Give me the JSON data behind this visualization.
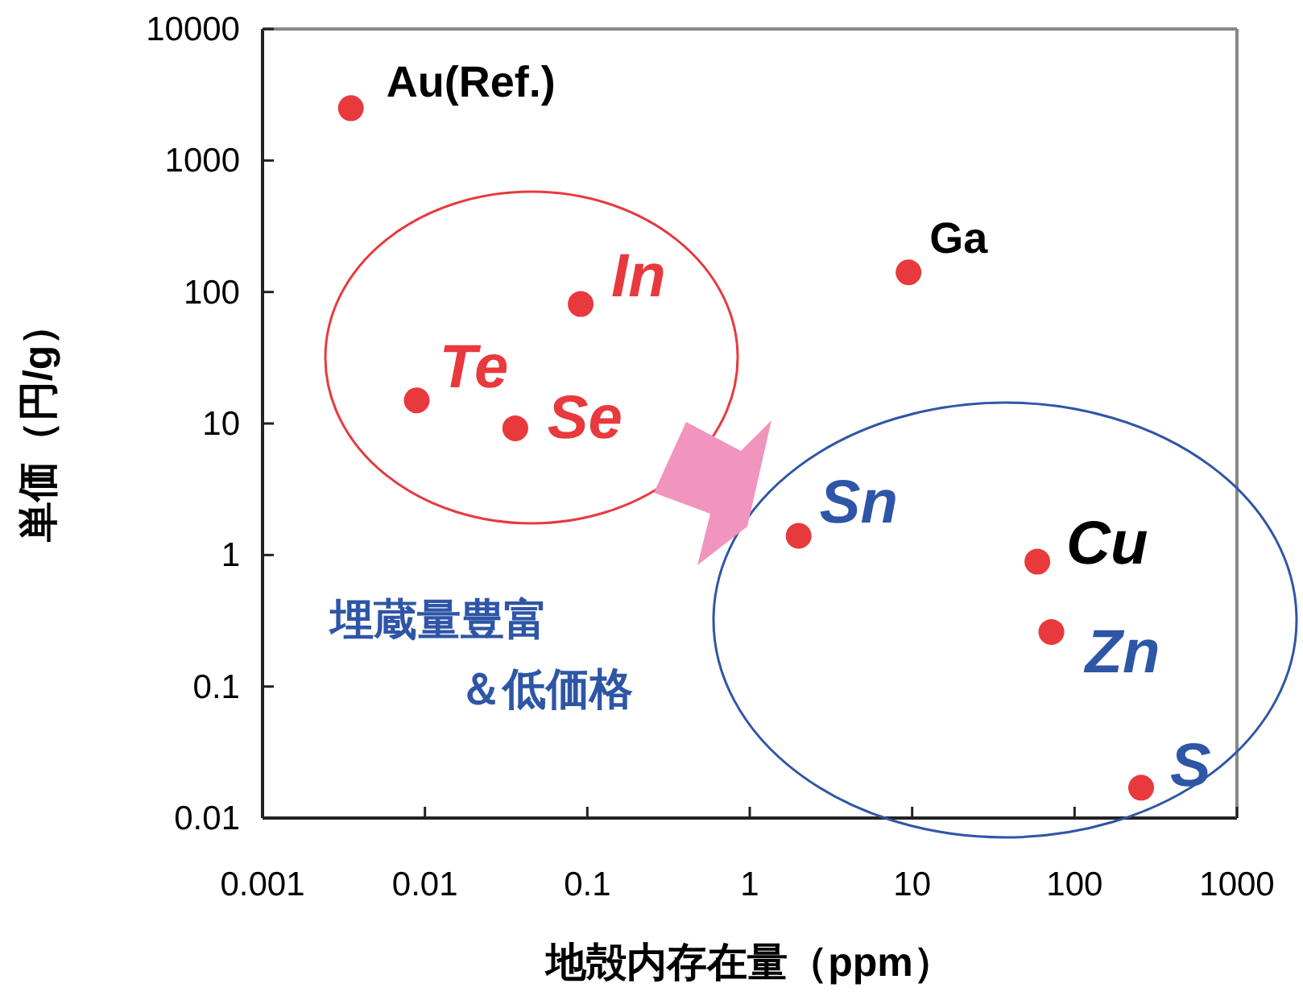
{
  "chart_data": {
    "type": "scatter",
    "xlabel": "地殻内存在量（ppm）",
    "ylabel": "単価（円/g）",
    "log": "xy",
    "marker": "circle",
    "x": [
      0.0035,
      0.0089,
      0.036,
      0.091,
      2.0,
      9.5,
      59,
      72,
      257
    ],
    "series": [
      {
        "color": "#e8393d",
        "values": [
          2500,
          15,
          9.2,
          81,
          1.4,
          141,
          0.89,
          0.26,
          0.017
        ]
      }
    ],
    "xlim": [
      0.001,
      1000
    ],
    "ylim": [
      0.01,
      10000
    ],
    "xticks": [
      0.001,
      0.01,
      0.1,
      1,
      10,
      100,
      1000
    ],
    "yticks": [
      0.01,
      0.1,
      1,
      10,
      100,
      1000,
      10000
    ],
    "annotations": [
      {
        "text": "Au(Ref.)",
        "x": 0.0035,
        "y": 2500
      },
      {
        "text": "Te",
        "x": 0.0089,
        "y": 15
      },
      {
        "text": "Se",
        "x": 0.036,
        "y": 9.2
      },
      {
        "text": "In",
        "x": 0.091,
        "y": 81
      },
      {
        "text": "Sn",
        "x": 2.0,
        "y": 1.4
      },
      {
        "text": "Ga",
        "x": 9.5,
        "y": 141
      },
      {
        "text": "Cu",
        "x": 59,
        "y": 0.89
      },
      {
        "text": "Zn",
        "x": 72,
        "y": 0.26
      },
      {
        "text": "S",
        "x": 257,
        "y": 0.017
      },
      "埋蔵量豊富",
      "＆低価格"
    ]
  }
}
